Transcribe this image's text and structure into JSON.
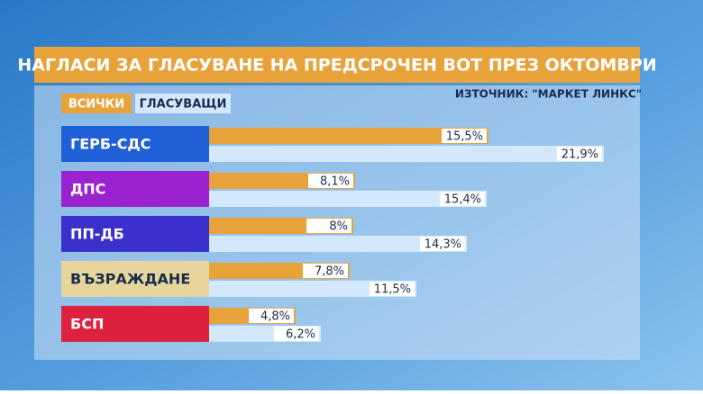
{
  "chart_data": {
    "type": "bar",
    "orientation": "horizontal",
    "title": "НАГЛАСИ ЗА ГЛАСУВАНЕ НА ПРЕДСРОЧЕН ВОТ ПРЕЗ ОКТОМВРИ",
    "source": "ИЗТОЧНИК: \"МАРКЕТ ЛИНКС\"",
    "categories": [
      "ГЕРБ-СДС",
      "ДПС",
      "ПП-ДБ",
      "ВЪЗРАЖДАНЕ",
      "БСП"
    ],
    "category_colors": [
      "#1f5fd8",
      "#9b22cf",
      "#3b30cc",
      "#e6d69c",
      "#de213d"
    ],
    "series": [
      {
        "name": "ВСИЧКИ",
        "color": "#e8a23a",
        "values": [
          15.5,
          8.1,
          8,
          7.8,
          4.8
        ],
        "value_labels": [
          "15,5%",
          "8,1%",
          "8%",
          "7,8%",
          "4,8%"
        ]
      },
      {
        "name": "ГЛАСУВАЩИ",
        "color": "#d3e8fb",
        "values": [
          21.9,
          15.4,
          14.3,
          11.5,
          6.2
        ],
        "value_labels": [
          "21,9%",
          "15,4%",
          "14,3%",
          "11,5%",
          "6,2%"
        ]
      }
    ]
  }
}
